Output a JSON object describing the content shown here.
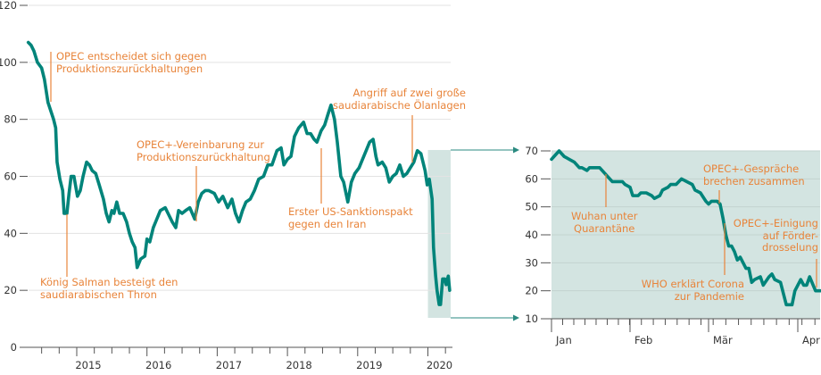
{
  "colors": {
    "line": "#00847a",
    "annotation": "#e8843a",
    "highlight": "#d3e4e1",
    "grid": "#e3e3e3",
    "axis": "#555555"
  },
  "chart_data": [
    {
      "type": "line",
      "ylim": [
        0,
        120
      ],
      "yticks": [
        "0",
        "20",
        "40",
        "60",
        "80",
        "100",
        "120"
      ],
      "xticks": [
        "2015",
        "2016",
        "2017",
        "2018",
        "2019",
        "2020"
      ],
      "grid": true,
      "highlight_range_year": [
        2020.0,
        2020.31
      ],
      "x_year": [
        2014.31,
        2014.35,
        2014.39,
        2014.44,
        2014.5,
        2014.54,
        2014.59,
        2014.67,
        2014.7,
        2014.72,
        2014.76,
        2014.8,
        2014.82,
        2014.86,
        2014.89,
        2014.92,
        2014.96,
        2015.01,
        2015.05,
        2015.09,
        2015.14,
        2015.18,
        2015.22,
        2015.27,
        2015.32,
        2015.38,
        2015.42,
        2015.46,
        2015.5,
        2015.53,
        2015.57,
        2015.61,
        2015.66,
        2015.71,
        2015.75,
        2015.79,
        2015.83,
        2015.86,
        2015.91,
        2015.97,
        2016.0,
        2016.04,
        2016.09,
        2016.14,
        2016.19,
        2016.26,
        2016.3,
        2016.36,
        2016.41,
        2016.45,
        2016.5,
        2016.55,
        2016.61,
        2016.68,
        2016.73,
        2016.78,
        2016.83,
        2016.88,
        2016.96,
        2017.02,
        2017.08,
        2017.15,
        2017.21,
        2017.26,
        2017.31,
        2017.36,
        2017.41,
        2017.47,
        2017.53,
        2017.59,
        2017.66,
        2017.72,
        2017.78,
        2017.85,
        2017.91,
        2017.95,
        2018.0,
        2018.05,
        2018.1,
        2018.16,
        2018.23,
        2018.28,
        2018.33,
        2018.38,
        2018.42,
        2018.48,
        2018.53,
        2018.58,
        2018.62,
        2018.67,
        2018.71,
        2018.76,
        2018.8,
        2018.86,
        2018.91,
        2018.96,
        2019.02,
        2019.07,
        2019.12,
        2019.17,
        2019.22,
        2019.26,
        2019.29,
        2019.35,
        2019.4,
        2019.45,
        2019.5,
        2019.55,
        2019.6,
        2019.65,
        2019.7,
        2019.75,
        2019.8,
        2019.85,
        2019.9,
        2019.96,
        2019.99,
        2020.02,
        2020.06,
        2020.08,
        2020.11,
        2020.13,
        2020.16,
        2020.18,
        2020.21,
        2020.24,
        2020.26,
        2020.29,
        2020.31
      ],
      "values": [
        107,
        106,
        104,
        100,
        98,
        94,
        86,
        80,
        77,
        65,
        59,
        55,
        47,
        47,
        54,
        60,
        60,
        53,
        55,
        60,
        65,
        64,
        62,
        61,
        57,
        52,
        47,
        44,
        48,
        47,
        51,
        47,
        47,
        44,
        40,
        37,
        35,
        28,
        31,
        32,
        38,
        37,
        42,
        45,
        48,
        49,
        47,
        44,
        42,
        48,
        47,
        48,
        49,
        45,
        51,
        54,
        55,
        55,
        54,
        51,
        53,
        49,
        52,
        47,
        44,
        48,
        51,
        52,
        55,
        59,
        60,
        64,
        64,
        69,
        70,
        64,
        66,
        67,
        74,
        77,
        79,
        75,
        75,
        73,
        72,
        76,
        78,
        82,
        85,
        80,
        72,
        60,
        58,
        51,
        58,
        61,
        63,
        66,
        69,
        72,
        73,
        67,
        64,
        65,
        63,
        58,
        60,
        61,
        64,
        60,
        61,
        63,
        65,
        69,
        68,
        62,
        57,
        59,
        52,
        35,
        25,
        20,
        15,
        15,
        24,
        24,
        22,
        25,
        20
      ],
      "annotations": [
        {
          "lines": [
            "OPEC entscheidet sich gegen",
            "Produktionszurückhaltungen"
          ]
        },
        {
          "lines": [
            "König Salman besteigt den",
            "saudiarabischen Thron"
          ]
        },
        {
          "lines": [
            "OPEC+-Vereinbarung zur",
            "Produktionszurückhaltung"
          ]
        },
        {
          "lines": [
            "Erster US-Sanktionspakt",
            "gegen den Iran"
          ]
        },
        {
          "lines": [
            "Angriff auf zwei große",
            "saudiarabische Ölanlagen"
          ]
        }
      ]
    },
    {
      "type": "line",
      "ylim": [
        10,
        70
      ],
      "yticks": [
        "10",
        "20",
        "30",
        "40",
        "50",
        "60",
        "70"
      ],
      "xticks": [
        "Jan",
        "Feb",
        "Mär",
        "Apr"
      ],
      "grid": true,
      "dates": [
        "2020-01-01",
        "2020-01-03",
        "2020-01-04",
        "2020-01-06",
        "2020-01-08",
        "2020-01-10",
        "2020-01-12",
        "2020-01-13",
        "2020-01-15",
        "2020-01-16",
        "2020-01-18",
        "2020-01-20",
        "2020-01-22",
        "2020-01-24",
        "2020-01-25",
        "2020-01-27",
        "2020-01-29",
        "2020-01-30",
        "2020-02-01",
        "2020-02-02",
        "2020-02-04",
        "2020-02-05",
        "2020-02-07",
        "2020-02-09",
        "2020-02-10",
        "2020-02-12",
        "2020-02-13",
        "2020-02-15",
        "2020-02-16",
        "2020-02-18",
        "2020-02-19",
        "2020-02-20",
        "2020-02-22",
        "2020-02-24",
        "2020-02-25",
        "2020-02-27",
        "2020-02-29",
        "2020-03-01",
        "2020-03-02",
        "2020-03-03",
        "2020-03-04",
        "2020-03-05",
        "2020-03-06",
        "2020-03-07",
        "2020-03-08",
        "2020-03-09",
        "2020-03-10",
        "2020-03-11",
        "2020-03-12",
        "2020-03-14",
        "2020-03-15",
        "2020-03-16",
        "2020-03-17",
        "2020-03-19",
        "2020-03-20",
        "2020-03-22",
        "2020-03-23",
        "2020-03-24",
        "2020-03-26",
        "2020-03-27",
        "2020-03-28",
        "2020-03-30",
        "2020-03-31",
        "2020-04-02",
        "2020-04-03",
        "2020-04-04",
        "2020-04-05",
        "2020-04-07",
        "2020-04-08",
        "2020-04-09"
      ],
      "values": [
        67,
        69,
        70,
        68,
        67,
        66,
        64,
        64,
        63,
        64,
        64,
        64,
        62,
        60,
        59,
        59,
        59,
        58,
        57,
        54,
        54,
        55,
        55,
        54,
        53,
        54,
        56,
        57,
        58,
        58,
        59,
        60,
        59,
        58,
        56,
        55,
        52,
        51,
        52,
        52,
        52,
        51,
        46,
        40,
        36,
        36,
        34,
        31,
        32,
        28,
        28,
        23,
        24,
        25,
        22,
        25,
        26,
        24,
        23,
        19,
        15,
        15,
        20,
        24,
        22,
        22,
        25,
        20,
        20,
        20
      ],
      "annotations": [
        {
          "lines": [
            "Wuhan unter",
            "Quarantäne"
          ]
        },
        {
          "lines": [
            "OPEC+-Gespräche",
            "brechen zusammen"
          ]
        },
        {
          "lines": [
            "WHO erklärt Corona",
            "zur Pandemie"
          ]
        },
        {
          "lines": [
            "OPEC+-Einigung",
            "auf Förder-",
            "drosselung"
          ]
        }
      ]
    }
  ]
}
